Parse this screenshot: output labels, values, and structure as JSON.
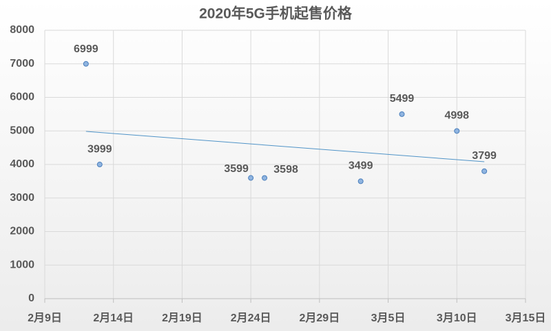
{
  "chart_data": {
    "type": "scatter",
    "title": "2020年5G手机起售价格",
    "x": [
      43,
      44,
      55,
      56,
      63,
      66,
      70,
      72
    ],
    "values": [
      6999,
      3999,
      3599,
      3598,
      3499,
      5499,
      4998,
      3799
    ],
    "color": "#8fb4e0",
    "trendline": true,
    "trendline_color": "#4f93c7",
    "xlim": [
      40,
      75
    ],
    "xticks": [
      {
        "value": 40,
        "label": "2月9日"
      },
      {
        "value": 45,
        "label": "2月14日"
      },
      {
        "value": 50,
        "label": "2月19日"
      },
      {
        "value": 55,
        "label": "2月24日"
      },
      {
        "value": 60,
        "label": "2月29日"
      },
      {
        "value": 65,
        "label": "3月5日"
      },
      {
        "value": 70,
        "label": "3月10日"
      },
      {
        "value": 75,
        "label": "3月15日"
      }
    ],
    "ylim": [
      0,
      8000
    ],
    "yticks": [
      0,
      1000,
      2000,
      3000,
      4000,
      5000,
      6000,
      7000,
      8000
    ],
    "grid": true
  }
}
